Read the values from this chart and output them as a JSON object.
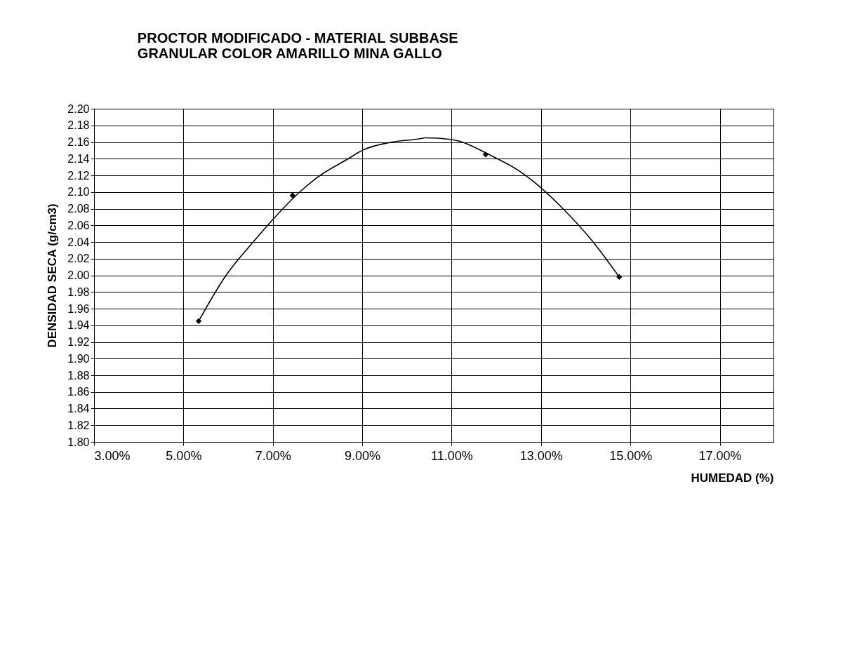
{
  "chart_data": {
    "type": "scatter",
    "title": [
      "PROCTOR MODIFICADO - MATERIAL SUBBASE",
      "GRANULAR COLOR AMARILLO MINA GALLO"
    ],
    "xlabel": "HUMEDAD (%)",
    "ylabel": "DENSIDAD SECA (g/cm3)",
    "xlim": [
      3,
      18.2
    ],
    "xticks": [
      {
        "value": 3,
        "label": "3.00%"
      },
      {
        "value": 5,
        "label": "5.00%"
      },
      {
        "value": 7,
        "label": "7.00%"
      },
      {
        "value": 9,
        "label": "9.00%"
      },
      {
        "value": 11,
        "label": "11.00%"
      },
      {
        "value": 13,
        "label": "13.00%"
      },
      {
        "value": 15,
        "label": "15.00%"
      },
      {
        "value": 17,
        "label": "17.00%"
      }
    ],
    "ylim": [
      1.8,
      2.2
    ],
    "yticks": [
      {
        "value": 1.8,
        "label": "1.80"
      },
      {
        "value": 1.82,
        "label": "1.82"
      },
      {
        "value": 1.84,
        "label": "1.84"
      },
      {
        "value": 1.86,
        "label": "1.86"
      },
      {
        "value": 1.88,
        "label": "1.88"
      },
      {
        "value": 1.9,
        "label": "1.90"
      },
      {
        "value": 1.92,
        "label": "1.92"
      },
      {
        "value": 1.94,
        "label": "1.94"
      },
      {
        "value": 1.96,
        "label": "1.96"
      },
      {
        "value": 1.98,
        "label": "1.98"
      },
      {
        "value": 2.0,
        "label": "2.00"
      },
      {
        "value": 2.02,
        "label": "2.02"
      },
      {
        "value": 2.04,
        "label": "2.04"
      },
      {
        "value": 2.06,
        "label": "2.06"
      },
      {
        "value": 2.08,
        "label": "2.08"
      },
      {
        "value": 2.1,
        "label": "2.10"
      },
      {
        "value": 2.12,
        "label": "2.12"
      },
      {
        "value": 2.14,
        "label": "2.14"
      },
      {
        "value": 2.16,
        "label": "2.16"
      },
      {
        "value": 2.18,
        "label": "2.18"
      },
      {
        "value": 2.2,
        "label": "2.20"
      }
    ],
    "grid": true,
    "series": [
      {
        "color": "#000000",
        "marker": "diamond",
        "x": [
          5.34,
          7.44,
          11.76,
          14.75
        ],
        "values": [
          1.945,
          2.096,
          2.145,
          1.998
        ]
      },
      {
        "type": "line",
        "color": "#000000",
        "marker": "none",
        "line_style": "solid",
        "x": [
          5.34,
          5.94,
          6.56,
          7.0,
          7.6,
          8.06,
          8.69,
          9.0,
          9.67,
          10.3,
          10.4,
          11.0,
          11.91,
          12.52,
          13.0,
          13.51,
          14.12,
          14.75
        ],
        "values": [
          1.945,
          1.999,
          2.04,
          2.067,
          2.1,
          2.12,
          2.14,
          2.15,
          2.16,
          2.164,
          2.165,
          2.163,
          2.143,
          2.125,
          2.105,
          2.079,
          2.043,
          1.998
        ]
      }
    ]
  }
}
